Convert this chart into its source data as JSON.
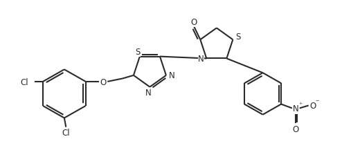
{
  "bg_color": "#ffffff",
  "line_color": "#2a2a2a",
  "line_width": 1.5,
  "font_size": 8.5,
  "figsize": [
    5.07,
    2.27
  ],
  "dpi": 100,
  "xlim": [
    0,
    10.2
  ],
  "ylim": [
    0,
    4.6
  ]
}
